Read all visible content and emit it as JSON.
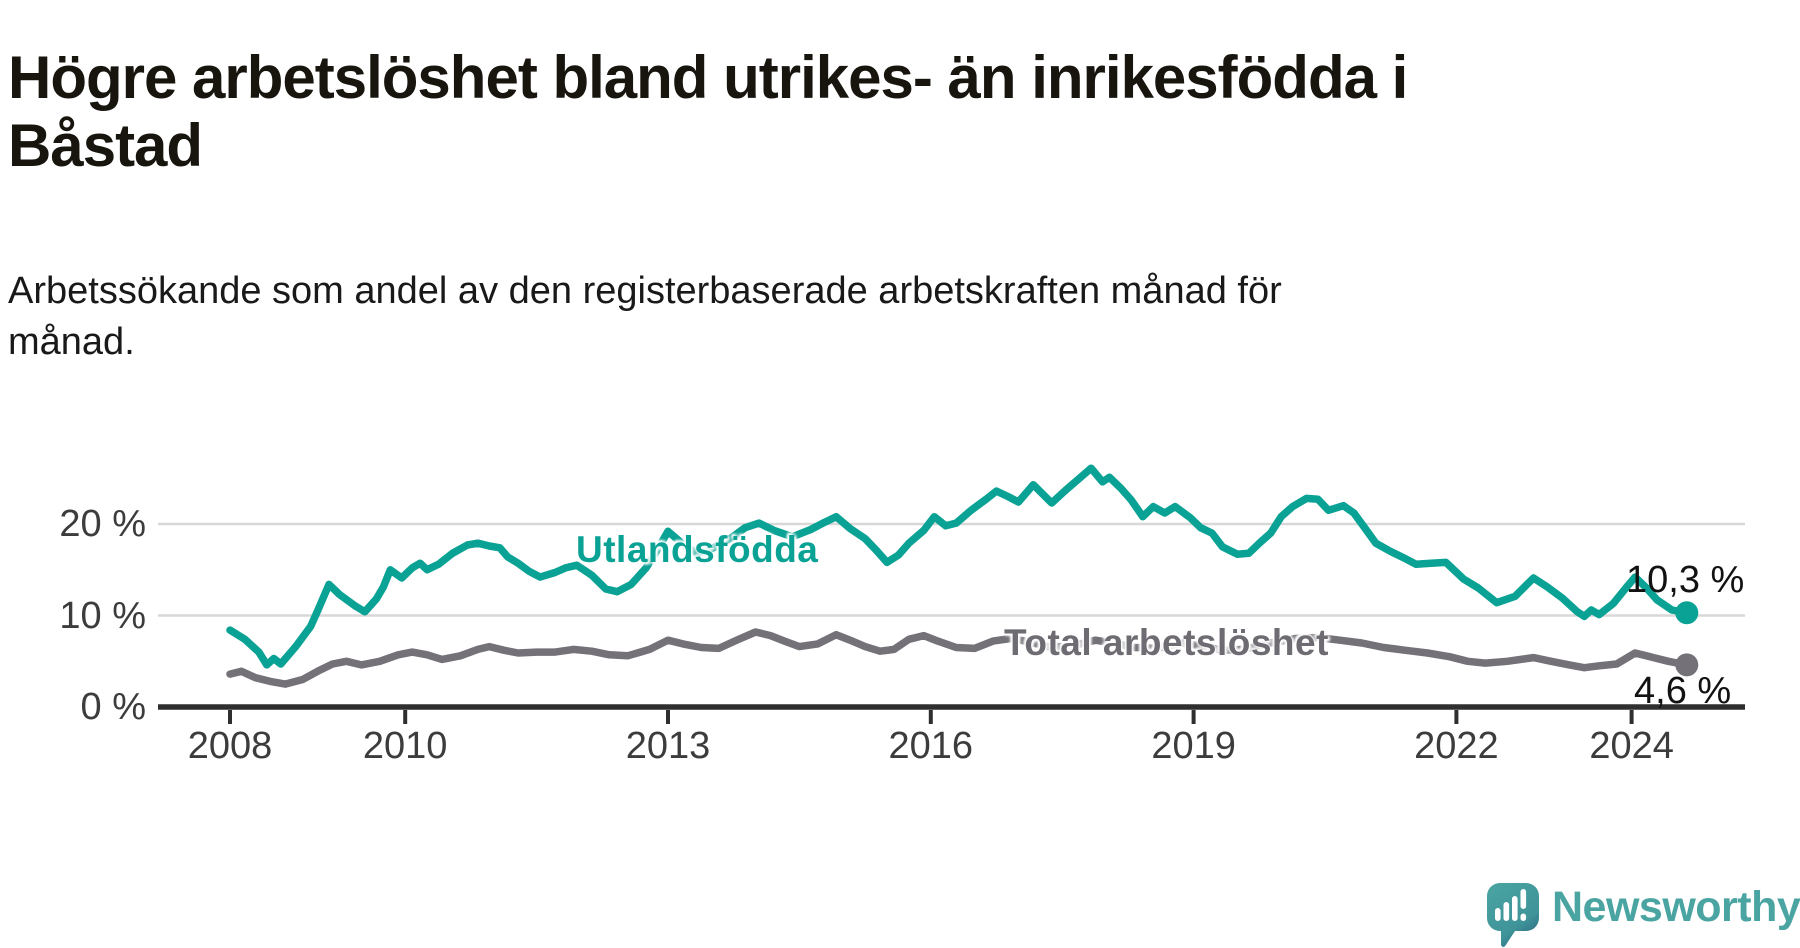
{
  "title": {
    "lines": [
      "Högre arbetslöshet bland utrikes- än inrikesfödda i",
      "Båstad"
    ]
  },
  "subtitle": {
    "lines": [
      "Arbetssökande som andel av den registerbaserade arbetskraften månad för",
      "månad."
    ]
  },
  "colors": {
    "background": "#ffffff",
    "title_text": "#18150f",
    "axis": "#2f2f2f",
    "axis_label": "#3c3c3c",
    "gridline": "#d8d8d8",
    "teal": "#0aa294",
    "grey": "#757179",
    "end_label_text": "#121212",
    "logo": "#4aa4a1"
  },
  "chart_data": {
    "type": "line",
    "title": "Högre arbetslöshet bland utrikes- än inrikesfödda i Båstad",
    "subtitle": "Arbetssökande som andel av den registerbaserade arbetskraften månad för månad.",
    "xlabel": "",
    "ylabel": "",
    "unit": "%",
    "xlim": [
      2007.3,
      2025.3
    ],
    "ylim": [
      0,
      28
    ],
    "grid": "horizontal",
    "legend_position": "inline-on-line",
    "x_ticks": [
      {
        "year": 2008,
        "label": "2008"
      },
      {
        "year": 2010,
        "label": "2010"
      },
      {
        "year": 2013,
        "label": "2013"
      },
      {
        "year": 2016,
        "label": "2016"
      },
      {
        "year": 2019,
        "label": "2019"
      },
      {
        "year": 2022,
        "label": "2022"
      },
      {
        "year": 2024,
        "label": "2024"
      }
    ],
    "y_ticks": [
      {
        "value": 0,
        "label": "0 %"
      },
      {
        "value": 10,
        "label": "10 %"
      },
      {
        "value": 20,
        "label": "20 %"
      }
    ],
    "y_gridlines": [
      10,
      20
    ],
    "series": [
      {
        "id": "utlandsfodda",
        "name": "Utlandsfödda",
        "color": "#0aa294",
        "end_label": "10,3 %",
        "end_value": 10.3,
        "points": [
          [
            2008.0,
            8.4
          ],
          [
            2008.17,
            7.4
          ],
          [
            2008.33,
            6.0
          ],
          [
            2008.42,
            4.6
          ],
          [
            2008.5,
            5.3
          ],
          [
            2008.58,
            4.7
          ],
          [
            2008.75,
            6.6
          ],
          [
            2008.92,
            8.8
          ],
          [
            2009.0,
            10.5
          ],
          [
            2009.13,
            13.4
          ],
          [
            2009.25,
            12.3
          ],
          [
            2009.42,
            11.1
          ],
          [
            2009.54,
            10.4
          ],
          [
            2009.67,
            11.8
          ],
          [
            2009.75,
            13.1
          ],
          [
            2009.83,
            15.0
          ],
          [
            2009.96,
            14.1
          ],
          [
            2010.08,
            15.2
          ],
          [
            2010.17,
            15.7
          ],
          [
            2010.25,
            15.0
          ],
          [
            2010.38,
            15.6
          ],
          [
            2010.54,
            16.8
          ],
          [
            2010.71,
            17.7
          ],
          [
            2010.83,
            17.9
          ],
          [
            2010.96,
            17.6
          ],
          [
            2011.08,
            17.4
          ],
          [
            2011.17,
            16.4
          ],
          [
            2011.29,
            15.7
          ],
          [
            2011.42,
            14.8
          ],
          [
            2011.54,
            14.2
          ],
          [
            2011.71,
            14.7
          ],
          [
            2011.83,
            15.2
          ],
          [
            2011.96,
            15.5
          ],
          [
            2012.13,
            14.4
          ],
          [
            2012.29,
            12.9
          ],
          [
            2012.42,
            12.6
          ],
          [
            2012.58,
            13.4
          ],
          [
            2012.75,
            15.2
          ],
          [
            2012.88,
            17.2
          ],
          [
            2013.0,
            19.2
          ],
          [
            2013.17,
            17.8
          ],
          [
            2013.33,
            16.8
          ],
          [
            2013.5,
            17.3
          ],
          [
            2013.71,
            18.4
          ],
          [
            2013.88,
            19.6
          ],
          [
            2014.04,
            20.1
          ],
          [
            2014.21,
            19.3
          ],
          [
            2014.42,
            18.6
          ],
          [
            2014.63,
            19.4
          ],
          [
            2014.79,
            20.2
          ],
          [
            2014.92,
            20.8
          ],
          [
            2015.08,
            19.5
          ],
          [
            2015.25,
            18.4
          ],
          [
            2015.38,
            17.1
          ],
          [
            2015.5,
            15.8
          ],
          [
            2015.63,
            16.6
          ],
          [
            2015.75,
            17.9
          ],
          [
            2015.92,
            19.3
          ],
          [
            2016.04,
            20.8
          ],
          [
            2016.17,
            19.8
          ],
          [
            2016.29,
            20.1
          ],
          [
            2016.46,
            21.5
          ],
          [
            2016.63,
            22.7
          ],
          [
            2016.75,
            23.6
          ],
          [
            2016.88,
            23.0
          ],
          [
            2017.0,
            22.4
          ],
          [
            2017.17,
            24.3
          ],
          [
            2017.38,
            22.3
          ],
          [
            2017.54,
            23.7
          ],
          [
            2017.71,
            25.1
          ],
          [
            2017.83,
            26.1
          ],
          [
            2017.96,
            24.6
          ],
          [
            2018.04,
            25.1
          ],
          [
            2018.17,
            23.9
          ],
          [
            2018.29,
            22.6
          ],
          [
            2018.42,
            20.8
          ],
          [
            2018.54,
            21.9
          ],
          [
            2018.67,
            21.2
          ],
          [
            2018.79,
            21.9
          ],
          [
            2018.96,
            20.7
          ],
          [
            2019.08,
            19.6
          ],
          [
            2019.21,
            19.0
          ],
          [
            2019.33,
            17.5
          ],
          [
            2019.5,
            16.7
          ],
          [
            2019.63,
            16.8
          ],
          [
            2019.75,
            17.9
          ],
          [
            2019.88,
            19.0
          ],
          [
            2020.0,
            20.8
          ],
          [
            2020.13,
            21.9
          ],
          [
            2020.29,
            22.8
          ],
          [
            2020.42,
            22.7
          ],
          [
            2020.54,
            21.5
          ],
          [
            2020.71,
            22.0
          ],
          [
            2020.83,
            21.2
          ],
          [
            2020.96,
            19.5
          ],
          [
            2021.08,
            17.9
          ],
          [
            2021.25,
            17.0
          ],
          [
            2021.42,
            16.2
          ],
          [
            2021.54,
            15.6
          ],
          [
            2021.71,
            15.7
          ],
          [
            2021.88,
            15.8
          ],
          [
            2022.08,
            14.0
          ],
          [
            2022.25,
            13.0
          ],
          [
            2022.46,
            11.4
          ],
          [
            2022.67,
            12.1
          ],
          [
            2022.88,
            14.1
          ],
          [
            2023.04,
            13.1
          ],
          [
            2023.21,
            11.9
          ],
          [
            2023.38,
            10.4
          ],
          [
            2023.46,
            9.9
          ],
          [
            2023.54,
            10.6
          ],
          [
            2023.63,
            10.1
          ],
          [
            2023.79,
            11.3
          ],
          [
            2023.96,
            13.3
          ],
          [
            2024.04,
            14.2
          ],
          [
            2024.17,
            13.0
          ],
          [
            2024.29,
            11.7
          ],
          [
            2024.46,
            10.6
          ],
          [
            2024.63,
            10.3
          ]
        ]
      },
      {
        "id": "total",
        "name": "Total arbetslöshet",
        "color": "#757179",
        "end_label": "4,6 %",
        "end_value": 4.6,
        "points": [
          [
            2008.0,
            3.6
          ],
          [
            2008.13,
            3.9
          ],
          [
            2008.29,
            3.2
          ],
          [
            2008.46,
            2.8
          ],
          [
            2008.63,
            2.5
          ],
          [
            2008.83,
            3.0
          ],
          [
            2009.0,
            3.9
          ],
          [
            2009.17,
            4.7
          ],
          [
            2009.33,
            5.0
          ],
          [
            2009.5,
            4.6
          ],
          [
            2009.71,
            5.0
          ],
          [
            2009.92,
            5.7
          ],
          [
            2010.08,
            6.0
          ],
          [
            2010.25,
            5.7
          ],
          [
            2010.42,
            5.2
          ],
          [
            2010.63,
            5.6
          ],
          [
            2010.83,
            6.3
          ],
          [
            2010.96,
            6.6
          ],
          [
            2011.13,
            6.2
          ],
          [
            2011.29,
            5.9
          ],
          [
            2011.5,
            6.0
          ],
          [
            2011.71,
            6.0
          ],
          [
            2011.92,
            6.3
          ],
          [
            2012.13,
            6.1
          ],
          [
            2012.33,
            5.7
          ],
          [
            2012.54,
            5.6
          ],
          [
            2012.79,
            6.3
          ],
          [
            2013.0,
            7.3
          ],
          [
            2013.17,
            6.9
          ],
          [
            2013.38,
            6.5
          ],
          [
            2013.58,
            6.4
          ],
          [
            2013.83,
            7.5
          ],
          [
            2014.0,
            8.2
          ],
          [
            2014.17,
            7.8
          ],
          [
            2014.33,
            7.2
          ],
          [
            2014.5,
            6.6
          ],
          [
            2014.71,
            6.9
          ],
          [
            2014.92,
            7.9
          ],
          [
            2015.08,
            7.3
          ],
          [
            2015.25,
            6.6
          ],
          [
            2015.42,
            6.1
          ],
          [
            2015.58,
            6.3
          ],
          [
            2015.75,
            7.4
          ],
          [
            2015.92,
            7.8
          ],
          [
            2016.08,
            7.2
          ],
          [
            2016.29,
            6.5
          ],
          [
            2016.5,
            6.4
          ],
          [
            2016.71,
            7.2
          ],
          [
            2016.92,
            7.5
          ],
          [
            2017.13,
            7.1
          ],
          [
            2017.33,
            6.6
          ],
          [
            2017.58,
            6.6
          ],
          [
            2017.88,
            7.3
          ],
          [
            2018.08,
            7.0
          ],
          [
            2018.33,
            6.5
          ],
          [
            2018.58,
            6.4
          ],
          [
            2018.88,
            7.0
          ],
          [
            2019.08,
            6.7
          ],
          [
            2019.33,
            6.2
          ],
          [
            2019.58,
            6.3
          ],
          [
            2019.88,
            7.0
          ],
          [
            2020.17,
            7.5
          ],
          [
            2020.42,
            7.6
          ],
          [
            2020.67,
            7.3
          ],
          [
            2020.92,
            7.0
          ],
          [
            2021.17,
            6.5
          ],
          [
            2021.42,
            6.2
          ],
          [
            2021.67,
            5.9
          ],
          [
            2021.92,
            5.5
          ],
          [
            2022.13,
            5.0
          ],
          [
            2022.33,
            4.8
          ],
          [
            2022.58,
            5.0
          ],
          [
            2022.88,
            5.4
          ],
          [
            2023.08,
            5.0
          ],
          [
            2023.29,
            4.6
          ],
          [
            2023.46,
            4.3
          ],
          [
            2023.63,
            4.5
          ],
          [
            2023.83,
            4.7
          ],
          [
            2024.04,
            5.9
          ],
          [
            2024.21,
            5.5
          ],
          [
            2024.42,
            5.0
          ],
          [
            2024.63,
            4.6
          ]
        ]
      }
    ]
  },
  "logo": {
    "text": "Newsworthy"
  }
}
